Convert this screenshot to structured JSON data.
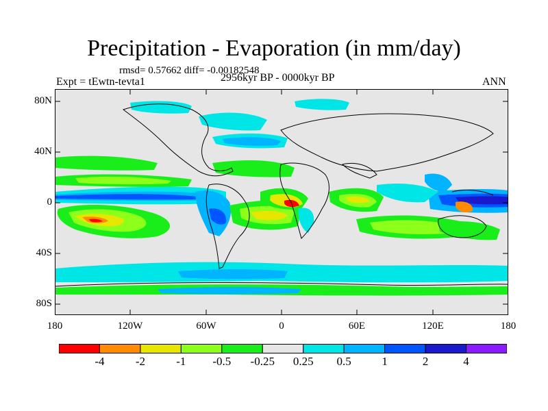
{
  "title": "Precipitation - Evaporation (in mm/day)",
  "stats": "rmsd= 0.57662 diff= -0.00182548",
  "experiment": "Expt = tEwtn-tevta1",
  "period": "2956kyr BP - 0000kyr BP",
  "season": "ANN",
  "lat_ticks": [
    "80N",
    "40N",
    "0",
    "40S",
    "80S"
  ],
  "lon_ticks": [
    "180",
    "120W",
    "60W",
    "0",
    "60E",
    "120E",
    "180"
  ],
  "colorbar": {
    "labels": [
      "-4",
      "-2",
      "-1",
      "-0.5",
      "-0.25",
      "0.25",
      "0.5",
      "1",
      "2",
      "4"
    ],
    "colors": [
      "#ff0000",
      "#ff8c00",
      "#e6e600",
      "#8cff1a",
      "#1aee1a",
      "#e6e6e6",
      "#00e6e6",
      "#00b4ff",
      "#0055ff",
      "#1a1acc",
      "#8a1aff"
    ]
  }
}
